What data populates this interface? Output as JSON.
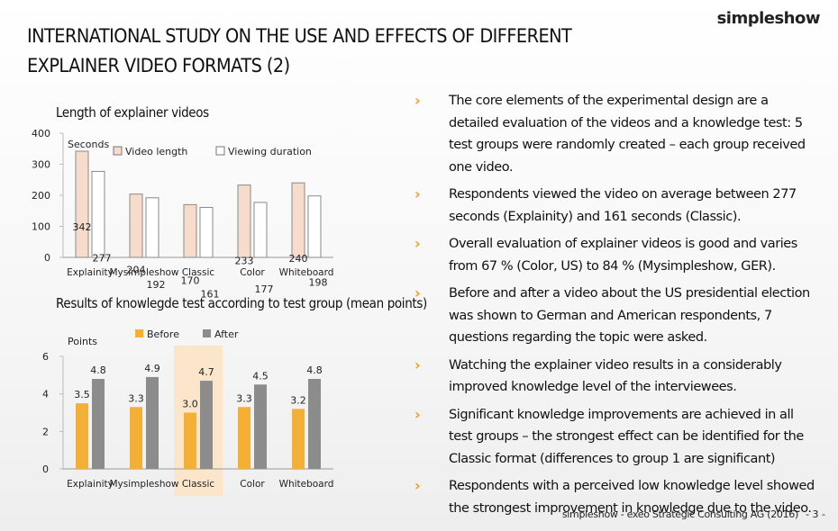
{
  "brand": {
    "logo": "simpleshow"
  },
  "title": {
    "line1": "INTERNATIONAL STUDY ON THE USE AND EFFECTS OF DIFFERENT",
    "line2": "EXPLAINER VIDEO FORMATS (2)"
  },
  "chart_data": [
    {
      "type": "bar",
      "title": "Length of explainer videos",
      "ylabel": "Seconds",
      "xlabel": "",
      "categories": [
        "Explainity",
        "Mysimpleshow",
        "Classic",
        "Color",
        "Whiteboard"
      ],
      "series": [
        {
          "name": "Video length",
          "values": [
            342,
            204,
            170,
            233,
            240
          ],
          "color": "#f8dccb"
        },
        {
          "name": "Viewing duration",
          "values": [
            277,
            192,
            161,
            177,
            198
          ],
          "color": "#ffffff"
        }
      ],
      "ylim": [
        0,
        400
      ],
      "yticks": [
        0,
        100,
        200,
        300,
        400
      ],
      "grid": true,
      "legend": "top"
    },
    {
      "type": "bar",
      "title": "Results of knowlegde test according to test group (mean points)",
      "ylabel": "Points",
      "xlabel": "",
      "categories": [
        "Explainity",
        "Mysimpleshow",
        "Classic",
        "Color",
        "Whiteboard"
      ],
      "series": [
        {
          "name": "Before",
          "values": [
            3.5,
            3.3,
            3.0,
            3.3,
            3.2
          ],
          "color": "#f4b036"
        },
        {
          "name": "After",
          "values": [
            4.8,
            4.9,
            4.7,
            4.5,
            4.8
          ],
          "color": "#8c8c8c"
        }
      ],
      "ylim": [
        0,
        6
      ],
      "yticks": [
        0,
        2,
        4,
        6
      ],
      "grid": true,
      "legend": "top",
      "highlight": "Classic",
      "highlight_color": "#fbe6cc"
    }
  ],
  "bullets": [
    "The core elements of the experimental design are a detailed evaluation of the videos and a knowledge test: 5 test groups were randomly created – each group received one video.",
    "Respondents viewed the video on average between 277 seconds (Explainity) and 161 seconds (Classic).",
    "Overall evaluation of explainer videos is good and varies from 67 % (Color, US) to 84 % (Mysimpleshow, GER).",
    "Before and after a video about the US presidential election was shown to German and American respondents, 7 questions regarding the topic were asked.",
    "Watching the explainer video results in a considerably improved knowledge level of the interviewees.",
    "Significant knowledge improvements are achieved in all test groups – the strongest effect can be identified for the Classic format (differences to group 1 are significant)",
    "Respondents with a perceived low knowledge level showed the strongest improvement in knowledge due to the video."
  ],
  "footer": {
    "text": "simpleshow  - exeo Strategic Consulting AG (2016)",
    "page": "- 3 -"
  }
}
